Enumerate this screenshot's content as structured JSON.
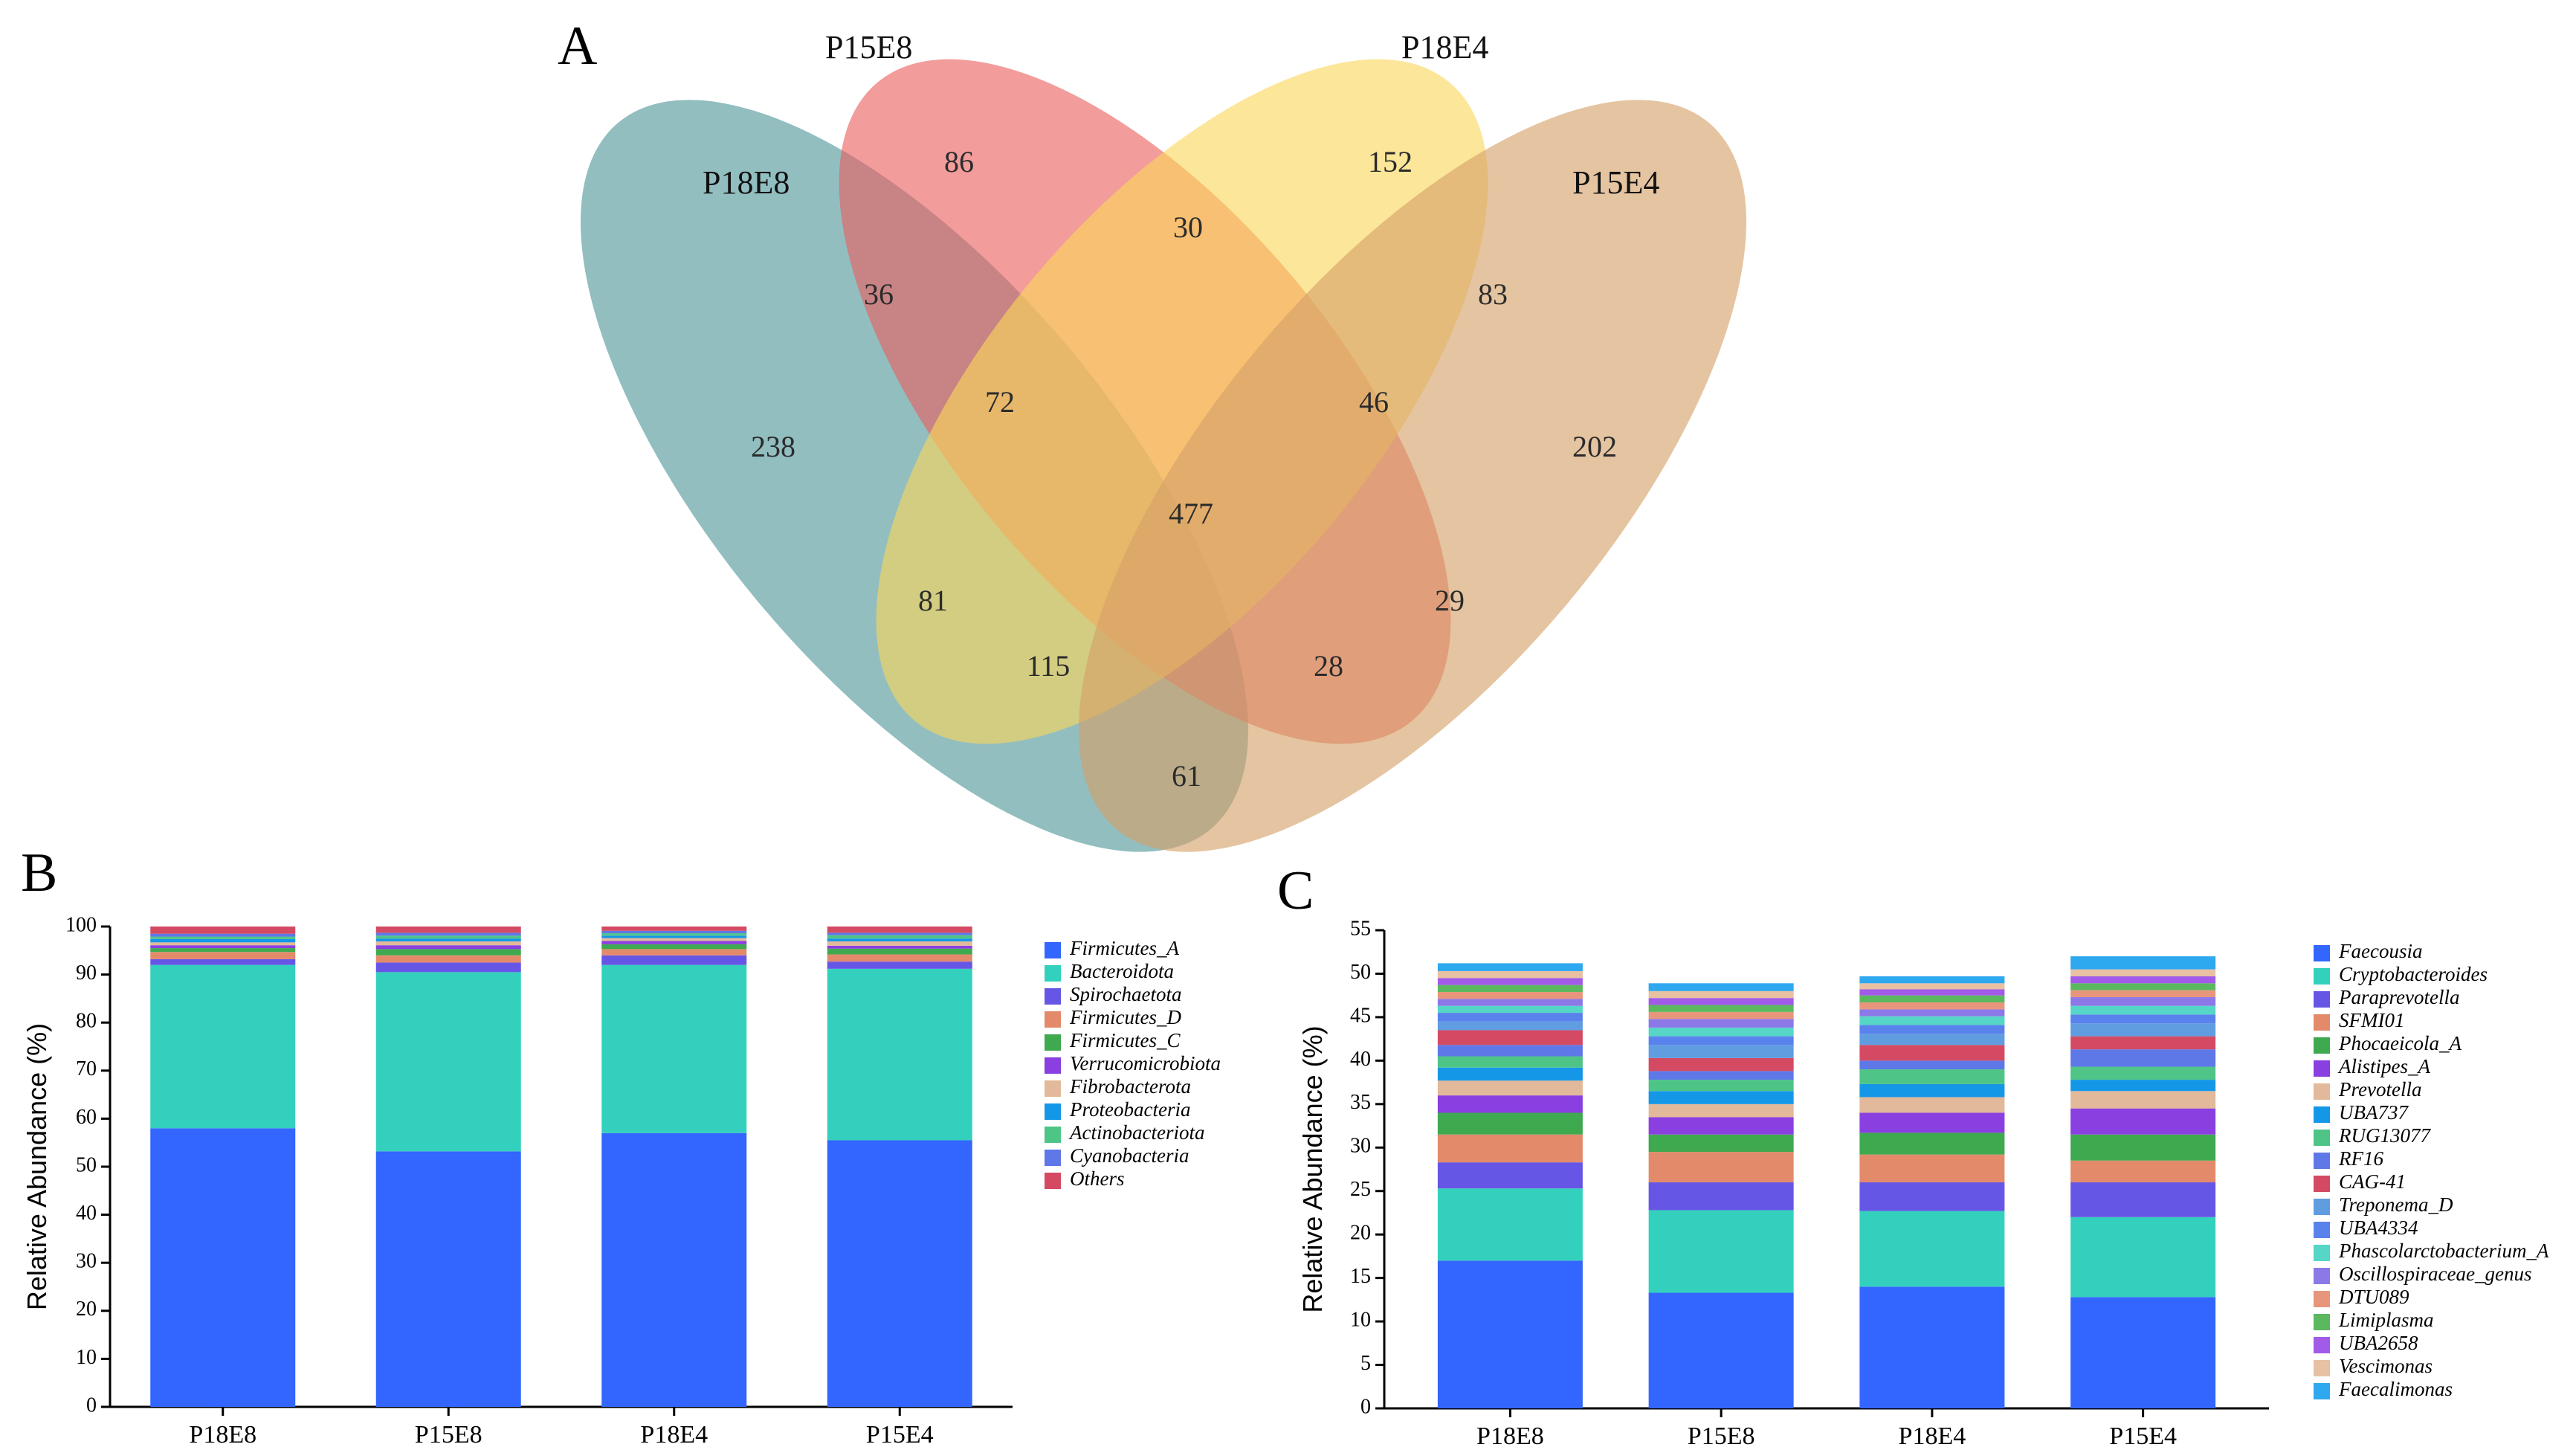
{
  "chart_data": [
    {
      "panel": "A",
      "type": "venn",
      "sets": [
        {
          "name": "P18E8",
          "color": "#4f9699"
        },
        {
          "name": "P15E8",
          "color": "#ea6060"
        },
        {
          "name": "P18E4",
          "color": "#fad65b"
        },
        {
          "name": "P15E4",
          "color": "#d5a067"
        }
      ],
      "regions": [
        {
          "sets": [
            "P15E8"
          ],
          "value": 86
        },
        {
          "sets": [
            "P18E4"
          ],
          "value": 152
        },
        {
          "sets": [
            "P15E8",
            "P18E4"
          ],
          "value": 30
        },
        {
          "sets": [
            "P18E8",
            "P15E8"
          ],
          "value": 36
        },
        {
          "sets": [
            "P18E4",
            "P15E4"
          ],
          "value": 83
        },
        {
          "sets": [
            "P18E8",
            "P15E8",
            "P18E4"
          ],
          "value": 72
        },
        {
          "sets": [
            "P15E8",
            "P18E4",
            "P15E4"
          ],
          "value": 46
        },
        {
          "sets": [
            "P18E8"
          ],
          "value": 238
        },
        {
          "sets": [
            "P15E4"
          ],
          "value": 202
        },
        {
          "sets": [
            "P18E8",
            "P15E8",
            "P18E4",
            "P15E4"
          ],
          "value": 477
        },
        {
          "sets": [
            "P18E8",
            "P18E4"
          ],
          "value": 81
        },
        {
          "sets": [
            "P15E8",
            "P15E4"
          ],
          "value": 29
        },
        {
          "sets": [
            "P18E8",
            "P18E4",
            "P15E4"
          ],
          "value": 115
        },
        {
          "sets": [
            "P18E8",
            "P15E8",
            "P15E4"
          ],
          "value": 28
        },
        {
          "sets": [
            "P18E8",
            "P15E4"
          ],
          "value": 61
        }
      ]
    },
    {
      "panel": "B",
      "type": "stacked_bar",
      "ylabel": "Relative Abundance (%)",
      "ylim": [
        0,
        100
      ],
      "yticks": [
        0,
        10,
        20,
        30,
        40,
        50,
        60,
        70,
        80,
        90,
        100
      ],
      "categories": [
        "P18E8",
        "P15E8",
        "P18E4",
        "P15E4"
      ],
      "series": [
        {
          "name": "Firmicutes_A",
          "color": "#3366ff",
          "values": [
            58.0,
            53.2,
            57.0,
            55.5
          ]
        },
        {
          "name": "Bacteroidota",
          "color": "#33d1bd",
          "values": [
            34.0,
            37.3,
            35.0,
            35.7
          ]
        },
        {
          "name": "Spirochaetota",
          "color": "#6656e6",
          "values": [
            1.2,
            2.0,
            2.0,
            1.5
          ]
        },
        {
          "name": "Firmicutes_D",
          "color": "#e38a6b",
          "values": [
            1.5,
            1.5,
            1.3,
            1.5
          ]
        },
        {
          "name": "Firmicutes_C",
          "color": "#3fa94f",
          "values": [
            0.8,
            1.3,
            1.0,
            1.2
          ]
        },
        {
          "name": "Verrucomicrobiota",
          "color": "#8a3fe0",
          "values": [
            0.6,
            0.8,
            0.7,
            0.6
          ]
        },
        {
          "name": "Fibrobacterota",
          "color": "#e2b99a",
          "values": [
            0.6,
            0.8,
            0.6,
            0.9
          ]
        },
        {
          "name": "Proteobacteria",
          "color": "#1597e8",
          "values": [
            0.7,
            0.6,
            0.5,
            0.6
          ]
        },
        {
          "name": "Actinobacteriota",
          "color": "#4fc487",
          "values": [
            0.5,
            0.6,
            0.5,
            0.7
          ]
        },
        {
          "name": "Cyanobacteria",
          "color": "#5e78e8",
          "values": [
            0.6,
            0.6,
            0.5,
            0.5
          ]
        },
        {
          "name": "Others",
          "color": "#d44a63",
          "values": [
            1.5,
            1.3,
            0.9,
            1.3
          ]
        }
      ]
    },
    {
      "panel": "C",
      "type": "stacked_bar",
      "ylabel": "Relative Abundance (%)",
      "ylim": [
        0,
        55
      ],
      "yticks": [
        0,
        5,
        10,
        15,
        20,
        25,
        30,
        35,
        40,
        45,
        50,
        55
      ],
      "categories": [
        "P18E8",
        "P15E8",
        "P18E4",
        "P15E4"
      ],
      "series": [
        {
          "name": "Faecousia",
          "color": "#3366ff",
          "values": [
            17.0,
            13.3,
            14.0,
            12.8
          ]
        },
        {
          "name": "Cryptobacteroides",
          "color": "#33d1bd",
          "values": [
            8.3,
            9.5,
            8.7,
            9.2
          ]
        },
        {
          "name": "Paraprevotella",
          "color": "#6656e6",
          "values": [
            3.0,
            3.2,
            3.3,
            4.0
          ]
        },
        {
          "name": "SFMI01",
          "color": "#e38a6b",
          "values": [
            3.2,
            3.5,
            3.2,
            2.5
          ]
        },
        {
          "name": "Phocaeicola_A",
          "color": "#3fa94f",
          "values": [
            2.5,
            2.0,
            2.5,
            3.0
          ]
        },
        {
          "name": "Alistipes_A",
          "color": "#8a3fe0",
          "values": [
            2.0,
            2.0,
            2.3,
            3.0
          ]
        },
        {
          "name": "Prevotella",
          "color": "#e2b99a",
          "values": [
            1.7,
            1.5,
            1.8,
            2.0
          ]
        },
        {
          "name": "UBA737",
          "color": "#1597e8",
          "values": [
            1.5,
            1.5,
            1.5,
            1.3
          ]
        },
        {
          "name": "RUG13077",
          "color": "#4fc487",
          "values": [
            1.3,
            1.3,
            1.7,
            1.5
          ]
        },
        {
          "name": "RF16",
          "color": "#5e78e8",
          "values": [
            1.3,
            1.0,
            1.0,
            2.0
          ]
        },
        {
          "name": "CAG-41",
          "color": "#d44a63",
          "values": [
            1.7,
            1.5,
            1.8,
            1.5
          ]
        },
        {
          "name": "Treponema_D",
          "color": "#5f9de0",
          "values": [
            1.0,
            1.5,
            1.3,
            1.5
          ]
        },
        {
          "name": "UBA4334",
          "color": "#5a82ed",
          "values": [
            1.0,
            1.0,
            1.0,
            1.0
          ]
        },
        {
          "name": "Phascolarctobacterium_A",
          "color": "#55d6c6",
          "values": [
            0.8,
            1.0,
            1.0,
            1.0
          ]
        },
        {
          "name": "Oscillospiraceae_genus",
          "color": "#8d78e8",
          "values": [
            0.8,
            1.0,
            0.8,
            1.0
          ]
        },
        {
          "name": "DTU089",
          "color": "#e7967b",
          "values": [
            0.8,
            0.8,
            0.8,
            0.8
          ]
        },
        {
          "name": "Limiplasma",
          "color": "#5bb85f",
          "values": [
            0.8,
            0.8,
            0.8,
            0.8
          ]
        },
        {
          "name": "UBA2658",
          "color": "#a25ae8",
          "values": [
            0.8,
            0.8,
            0.7,
            0.8
          ]
        },
        {
          "name": "Vescimonas",
          "color": "#e8c0a2",
          "values": [
            0.8,
            0.8,
            0.7,
            0.8
          ]
        },
        {
          "name": "Faecalimonas",
          "color": "#2ea8ef",
          "values": [
            0.9,
            0.9,
            0.8,
            1.5
          ]
        }
      ]
    }
  ],
  "panel_letters": {
    "a": "A",
    "b": "B",
    "c": "C"
  }
}
